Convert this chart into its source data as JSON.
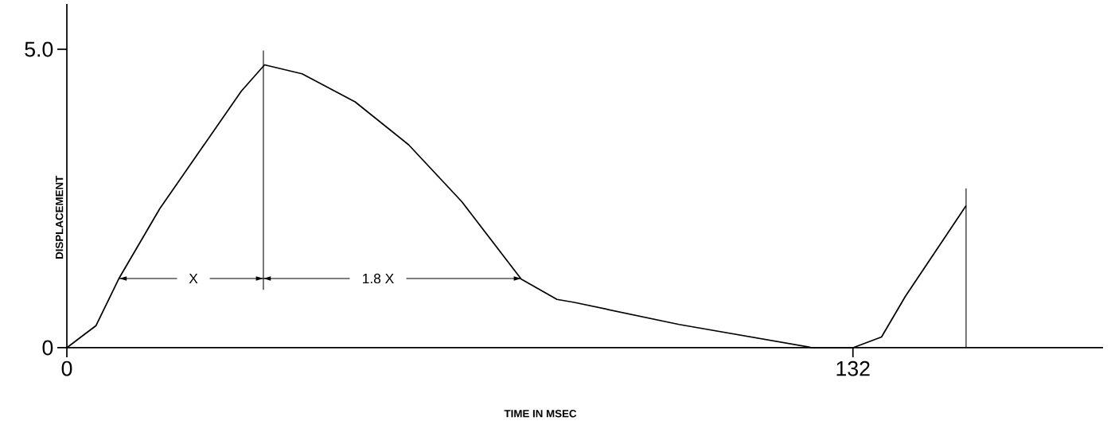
{
  "chart_data": {
    "type": "line",
    "xlabel": "TIME IN MSEC",
    "ylabel": "DISPLACEMENT",
    "xlim": [
      0,
      174
    ],
    "ylim": [
      0,
      5.76
    ],
    "xticks": [
      0,
      132
    ],
    "yticks": [
      0,
      {
        "value": 5,
        "label": "5.0"
      }
    ],
    "series": [
      {
        "color": "#000000",
        "x": [
          0,
          2.5,
          4.9,
          8.8,
          15.6,
          22.2,
          29.3,
          33.2,
          39.5,
          48.4,
          57.4,
          66.3,
          76.3,
          82.3,
          85.2,
          102.8,
          125.2,
          132,
          136.8,
          140.8,
          151
        ],
        "values": [
          0,
          0.19,
          0.37,
          1.17,
          2.33,
          3.28,
          4.3,
          4.74,
          4.59,
          4.12,
          3.4,
          2.45,
          1.15,
          0.81,
          0.76,
          0.39,
          0,
          0,
          0.18,
          0.86,
          2.38
        ]
      },
      {
        "color": "#000000",
        "x": [
          33,
          33
        ],
        "values": [
          0.97,
          4.98
        ]
      },
      {
        "color": "#000000",
        "x": [
          151,
          151
        ],
        "values": [
          0,
          2.67
        ]
      },
      {
        "color": "#000000",
        "x": [
          8.8,
          18.5,
          null,
          24,
          33
        ],
        "values": [
          1.16,
          1.16,
          null,
          1.16,
          1.16
        ]
      },
      {
        "color": "#000000",
        "x": [
          33,
          47.5,
          null,
          57,
          76.3
        ],
        "values": [
          1.16,
          1.16,
          null,
          1.16,
          1.16
        ]
      }
    ],
    "annotations": [
      "X",
      "1.8 X"
    ]
  }
}
